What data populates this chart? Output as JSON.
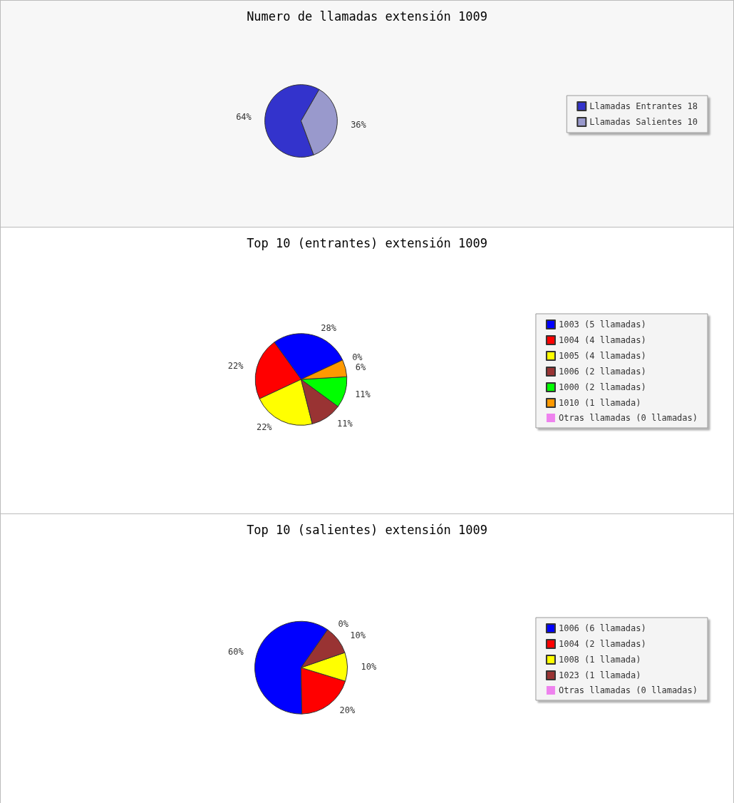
{
  "chart_data": [
    {
      "type": "pie",
      "title": "Numero de llamadas extensión 1009",
      "categories": [
        "Llamadas Entrantes 18",
        "Llamadas Salientes 10"
      ],
      "values": [
        64,
        36
      ],
      "value_labels": [
        "64%",
        "36%"
      ],
      "colors": [
        "#3333cc",
        "#9999cc"
      ],
      "legend": "right"
    },
    {
      "type": "pie",
      "title": "Top 10 (entrantes) extensión 1009",
      "categories": [
        "1003 (5 llamadas)",
        "1004 (4 llamadas)",
        "1005 (4 llamadas)",
        "1006 (2 llamadas)",
        "1000 (2 llamadas)",
        "1010 (1 llamada)",
        "Otras llamadas (0 llamadas)"
      ],
      "values": [
        28,
        22,
        22,
        11,
        11,
        6,
        0
      ],
      "value_labels": [
        "28%",
        "22%",
        "22%",
        "11%",
        "11%",
        "6%",
        "0%"
      ],
      "colors": [
        "#0000ff",
        "#ff0000",
        "#ffff00",
        "#993333",
        "#00ff00",
        "#ff9900",
        "#ee82ee"
      ],
      "legend": "right"
    },
    {
      "type": "pie",
      "title": "Top 10 (salientes) extensión 1009",
      "categories": [
        "1006 (6 llamadas)",
        "1004 (2 llamadas)",
        "1008 (1 llamada)",
        "1023 (1 llamada)",
        "Otras llamadas (0 llamadas)"
      ],
      "values": [
        60,
        20,
        10,
        10,
        0
      ],
      "value_labels": [
        "60%",
        "20%",
        "10%",
        "10%",
        "0%"
      ],
      "colors": [
        "#0000ff",
        "#ff0000",
        "#ffff00",
        "#993333",
        "#ee82ee"
      ],
      "legend": "right"
    }
  ]
}
